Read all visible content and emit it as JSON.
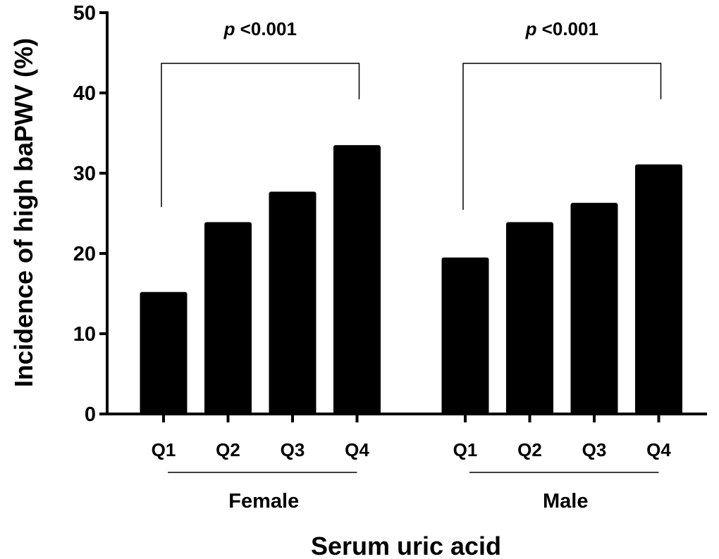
{
  "chart_data": {
    "type": "bar",
    "xlabel": "Serum uric acid",
    "ylabel": "Incidence of high baPWV (%)",
    "ylim": [
      0,
      50
    ],
    "yticks": [
      "0",
      "10",
      "20",
      "30",
      "40",
      "50"
    ],
    "grid": false,
    "groups": [
      {
        "name": "Female",
        "categories": [
          "Q1",
          "Q2",
          "Q3",
          "Q4"
        ],
        "values": [
          15.2,
          23.9,
          27.7,
          33.5
        ],
        "significance": {
          "p_symbol": "p",
          "p_text": "<0.001",
          "from": "Q1",
          "to": "Q4"
        }
      },
      {
        "name": "Male",
        "categories": [
          "Q1",
          "Q2",
          "Q3",
          "Q4"
        ],
        "values": [
          19.5,
          23.9,
          26.3,
          31.1
        ],
        "significance": {
          "p_symbol": "p",
          "p_text": "<0.001",
          "from": "Q1",
          "to": "Q4"
        }
      }
    ],
    "bar_color": "#000000"
  }
}
